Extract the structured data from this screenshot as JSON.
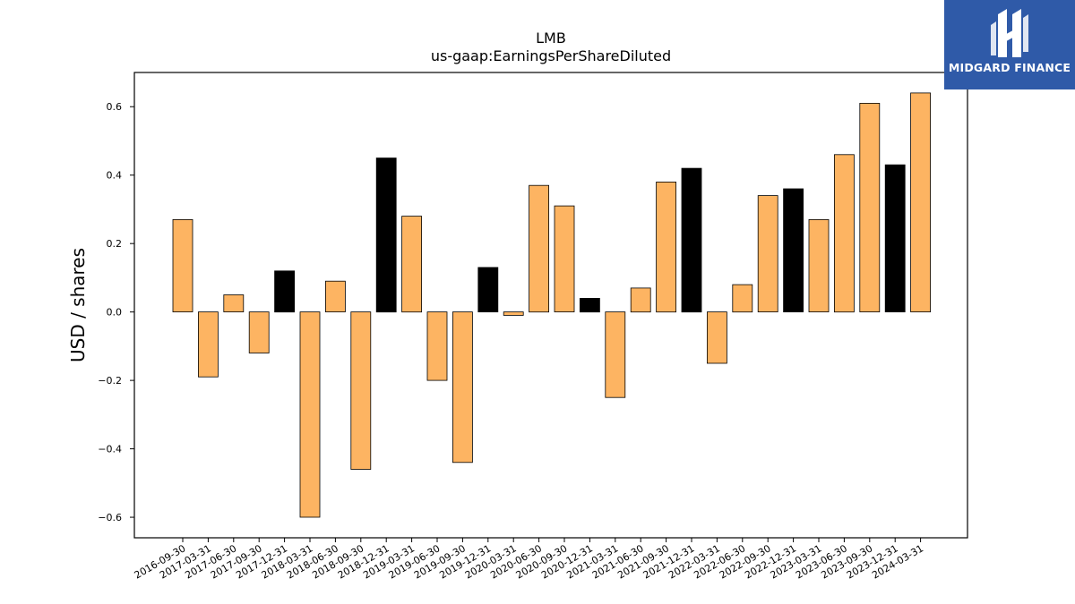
{
  "brand": {
    "name": "MIDGARD FINANCE",
    "bg_color": "#2f5aa8"
  },
  "chart_data": {
    "type": "bar",
    "title": "LMB",
    "subtitle": "us-gaap:EarningsPerShareDiluted",
    "xlabel": "",
    "ylabel": "USD / shares",
    "ylim": [
      -0.66,
      0.7
    ],
    "yticks": [
      -0.6,
      -0.4,
      -0.2,
      0.0,
      0.2,
      0.4,
      0.6
    ],
    "grid": false,
    "colors": {
      "quarter": "#fdb462",
      "annual": "#000000",
      "edge": "#000000"
    },
    "categories": [
      "2016-09-30",
      "2017-03-31",
      "2017-06-30",
      "2017-09-30",
      "2017-12-31",
      "2018-03-31",
      "2018-06-30",
      "2018-09-30",
      "2018-12-31",
      "2019-03-31",
      "2019-06-30",
      "2019-09-30",
      "2019-12-31",
      "2020-03-31",
      "2020-06-30",
      "2020-09-30",
      "2020-12-31",
      "2021-03-31",
      "2021-06-30",
      "2021-09-30",
      "2021-12-31",
      "2022-03-31",
      "2022-06-30",
      "2022-09-30",
      "2022-12-31",
      "2023-03-31",
      "2023-06-30",
      "2023-09-30",
      "2023-12-31",
      "2024-03-31"
    ],
    "values": [
      0.27,
      -0.19,
      0.05,
      -0.12,
      0.12,
      -0.6,
      0.09,
      -0.46,
      0.45,
      0.28,
      -0.2,
      -0.44,
      0.13,
      -0.01,
      0.37,
      0.31,
      0.04,
      -0.25,
      0.07,
      0.38,
      0.42,
      -0.15,
      0.08,
      0.34,
      0.36,
      0.27,
      0.46,
      0.61,
      0.43,
      0.64
    ],
    "bar_colors": [
      "quarter",
      "quarter",
      "quarter",
      "quarter",
      "annual",
      "quarter",
      "quarter",
      "quarter",
      "annual",
      "quarter",
      "quarter",
      "quarter",
      "annual",
      "quarter",
      "quarter",
      "quarter",
      "annual",
      "quarter",
      "quarter",
      "quarter",
      "annual",
      "quarter",
      "quarter",
      "quarter",
      "annual",
      "quarter",
      "quarter",
      "quarter",
      "annual",
      "quarter"
    ]
  }
}
